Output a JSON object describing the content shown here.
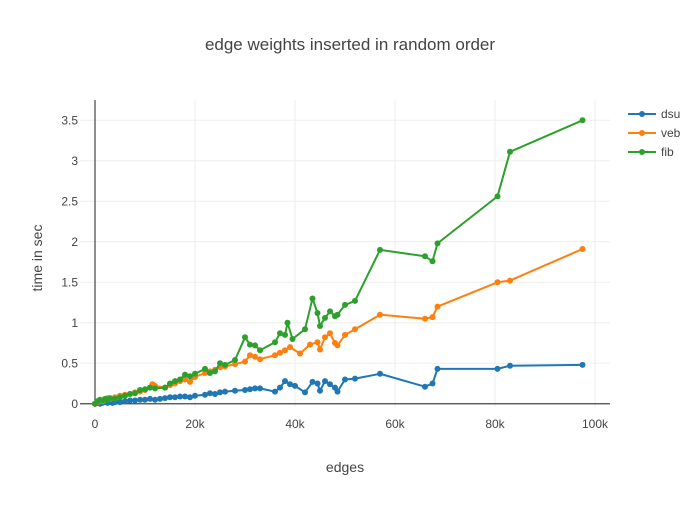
{
  "chart_data": {
    "type": "line",
    "title": "edge weights inserted in random order",
    "xlabel": "edges",
    "ylabel": "time in sec",
    "xlim": [
      -3000,
      103000
    ],
    "ylim": [
      -0.04,
      3.75
    ],
    "x_ticks": [
      0,
      20000,
      40000,
      60000,
      80000,
      100000
    ],
    "x_tick_labels": [
      "0",
      "20k",
      "40k",
      "60k",
      "80k",
      "100k"
    ],
    "y_ticks": [
      0,
      0.5,
      1,
      1.5,
      2,
      2.5,
      3,
      3.5
    ],
    "y_tick_labels": [
      "0",
      "0.5",
      "1",
      "1.5",
      "2",
      "2.5",
      "3",
      "3.5"
    ],
    "grid": true,
    "legend_position": "top-right",
    "series": [
      {
        "name": "dsu",
        "color": "#1f77b4",
        "points": [
          [
            0,
            0.0
          ],
          [
            500,
            0.01
          ],
          [
            1000,
            0.0
          ],
          [
            1500,
            0.01
          ],
          [
            2000,
            0.02
          ],
          [
            2500,
            0.01
          ],
          [
            3000,
            0.02
          ],
          [
            3500,
            0.01
          ],
          [
            4000,
            0.02
          ],
          [
            5000,
            0.02
          ],
          [
            6000,
            0.03
          ],
          [
            7000,
            0.04
          ],
          [
            8000,
            0.04
          ],
          [
            9000,
            0.05
          ],
          [
            10000,
            0.05
          ],
          [
            11000,
            0.06
          ],
          [
            12000,
            0.05
          ],
          [
            13000,
            0.06
          ],
          [
            14000,
            0.07
          ],
          [
            15000,
            0.08
          ],
          [
            16000,
            0.08
          ],
          [
            17000,
            0.09
          ],
          [
            18000,
            0.09
          ],
          [
            19000,
            0.08
          ],
          [
            20000,
            0.1
          ],
          [
            22000,
            0.11
          ],
          [
            23000,
            0.13
          ],
          [
            24000,
            0.12
          ],
          [
            25000,
            0.14
          ],
          [
            26000,
            0.15
          ],
          [
            28000,
            0.16
          ],
          [
            30000,
            0.17
          ],
          [
            31000,
            0.18
          ],
          [
            32000,
            0.19
          ],
          [
            33000,
            0.19
          ],
          [
            36000,
            0.15
          ],
          [
            37000,
            0.2
          ],
          [
            38000,
            0.28
          ],
          [
            39000,
            0.24
          ],
          [
            40000,
            0.22
          ],
          [
            42000,
            0.14
          ],
          [
            43500,
            0.27
          ],
          [
            44500,
            0.25
          ],
          [
            45000,
            0.16
          ],
          [
            46000,
            0.28
          ],
          [
            47000,
            0.24
          ],
          [
            48000,
            0.2
          ],
          [
            48500,
            0.15
          ],
          [
            50000,
            0.3
          ],
          [
            52000,
            0.31
          ],
          [
            57000,
            0.37
          ],
          [
            66000,
            0.21
          ],
          [
            67500,
            0.25
          ],
          [
            68500,
            0.43
          ],
          [
            80500,
            0.43
          ],
          [
            83000,
            0.47
          ],
          [
            97500,
            0.48
          ]
        ]
      },
      {
        "name": "veb",
        "color": "#ff7f0e",
        "points": [
          [
            0,
            0.0
          ],
          [
            500,
            0.02
          ],
          [
            1000,
            0.04
          ],
          [
            1500,
            0.03
          ],
          [
            2000,
            0.05
          ],
          [
            2500,
            0.07
          ],
          [
            3000,
            0.06
          ],
          [
            4000,
            0.08
          ],
          [
            5000,
            0.1
          ],
          [
            6000,
            0.11
          ],
          [
            7000,
            0.12
          ],
          [
            8000,
            0.14
          ],
          [
            9000,
            0.15
          ],
          [
            10000,
            0.17
          ],
          [
            11000,
            0.2
          ],
          [
            11500,
            0.24
          ],
          [
            12000,
            0.22
          ],
          [
            14000,
            0.2
          ],
          [
            15000,
            0.23
          ],
          [
            16000,
            0.25
          ],
          [
            17000,
            0.28
          ],
          [
            18000,
            0.3
          ],
          [
            19000,
            0.27
          ],
          [
            20000,
            0.33
          ],
          [
            22000,
            0.38
          ],
          [
            23000,
            0.4
          ],
          [
            24000,
            0.42
          ],
          [
            25000,
            0.45
          ],
          [
            26000,
            0.46
          ],
          [
            28000,
            0.49
          ],
          [
            30000,
            0.52
          ],
          [
            31000,
            0.6
          ],
          [
            32000,
            0.58
          ],
          [
            33000,
            0.55
          ],
          [
            36000,
            0.6
          ],
          [
            37000,
            0.63
          ],
          [
            38000,
            0.66
          ],
          [
            39000,
            0.7
          ],
          [
            41000,
            0.62
          ],
          [
            43000,
            0.73
          ],
          [
            44500,
            0.76
          ],
          [
            45000,
            0.67
          ],
          [
            46000,
            0.82
          ],
          [
            47000,
            0.87
          ],
          [
            48000,
            0.75
          ],
          [
            48500,
            0.72
          ],
          [
            50000,
            0.85
          ],
          [
            52000,
            0.92
          ],
          [
            57000,
            1.1
          ],
          [
            66000,
            1.05
          ],
          [
            67500,
            1.07
          ],
          [
            68500,
            1.2
          ],
          [
            80500,
            1.5
          ],
          [
            83000,
            1.52
          ],
          [
            97500,
            1.91
          ]
        ]
      },
      {
        "name": "fib",
        "color": "#2ca02c",
        "points": [
          [
            0,
            0.0
          ],
          [
            500,
            0.03
          ],
          [
            1000,
            0.05
          ],
          [
            1500,
            0.04
          ],
          [
            2000,
            0.06
          ],
          [
            2500,
            0.05
          ],
          [
            3000,
            0.07
          ],
          [
            4000,
            0.06
          ],
          [
            5000,
            0.08
          ],
          [
            6000,
            0.1
          ],
          [
            7000,
            0.12
          ],
          [
            8000,
            0.13
          ],
          [
            9000,
            0.17
          ],
          [
            10000,
            0.18
          ],
          [
            11000,
            0.2
          ],
          [
            12000,
            0.19
          ],
          [
            14000,
            0.2
          ],
          [
            15000,
            0.25
          ],
          [
            16000,
            0.28
          ],
          [
            17000,
            0.3
          ],
          [
            18000,
            0.36
          ],
          [
            19000,
            0.34
          ],
          [
            20000,
            0.37
          ],
          [
            22000,
            0.43
          ],
          [
            23000,
            0.38
          ],
          [
            24000,
            0.4
          ],
          [
            25000,
            0.5
          ],
          [
            26000,
            0.48
          ],
          [
            28000,
            0.54
          ],
          [
            30000,
            0.82
          ],
          [
            31000,
            0.73
          ],
          [
            32000,
            0.72
          ],
          [
            33000,
            0.66
          ],
          [
            36000,
            0.76
          ],
          [
            37000,
            0.87
          ],
          [
            38000,
            0.85
          ],
          [
            38500,
            1.0
          ],
          [
            39500,
            0.8
          ],
          [
            42000,
            0.92
          ],
          [
            43500,
            1.3
          ],
          [
            44500,
            1.12
          ],
          [
            45000,
            0.96
          ],
          [
            46000,
            1.06
          ],
          [
            47000,
            1.14
          ],
          [
            48000,
            1.08
          ],
          [
            48500,
            1.1
          ],
          [
            50000,
            1.22
          ],
          [
            52000,
            1.27
          ],
          [
            57000,
            1.9
          ],
          [
            66000,
            1.82
          ],
          [
            67500,
            1.76
          ],
          [
            68500,
            1.98
          ],
          [
            80500,
            2.56
          ],
          [
            83000,
            3.11
          ],
          [
            97500,
            3.5
          ]
        ]
      }
    ]
  }
}
